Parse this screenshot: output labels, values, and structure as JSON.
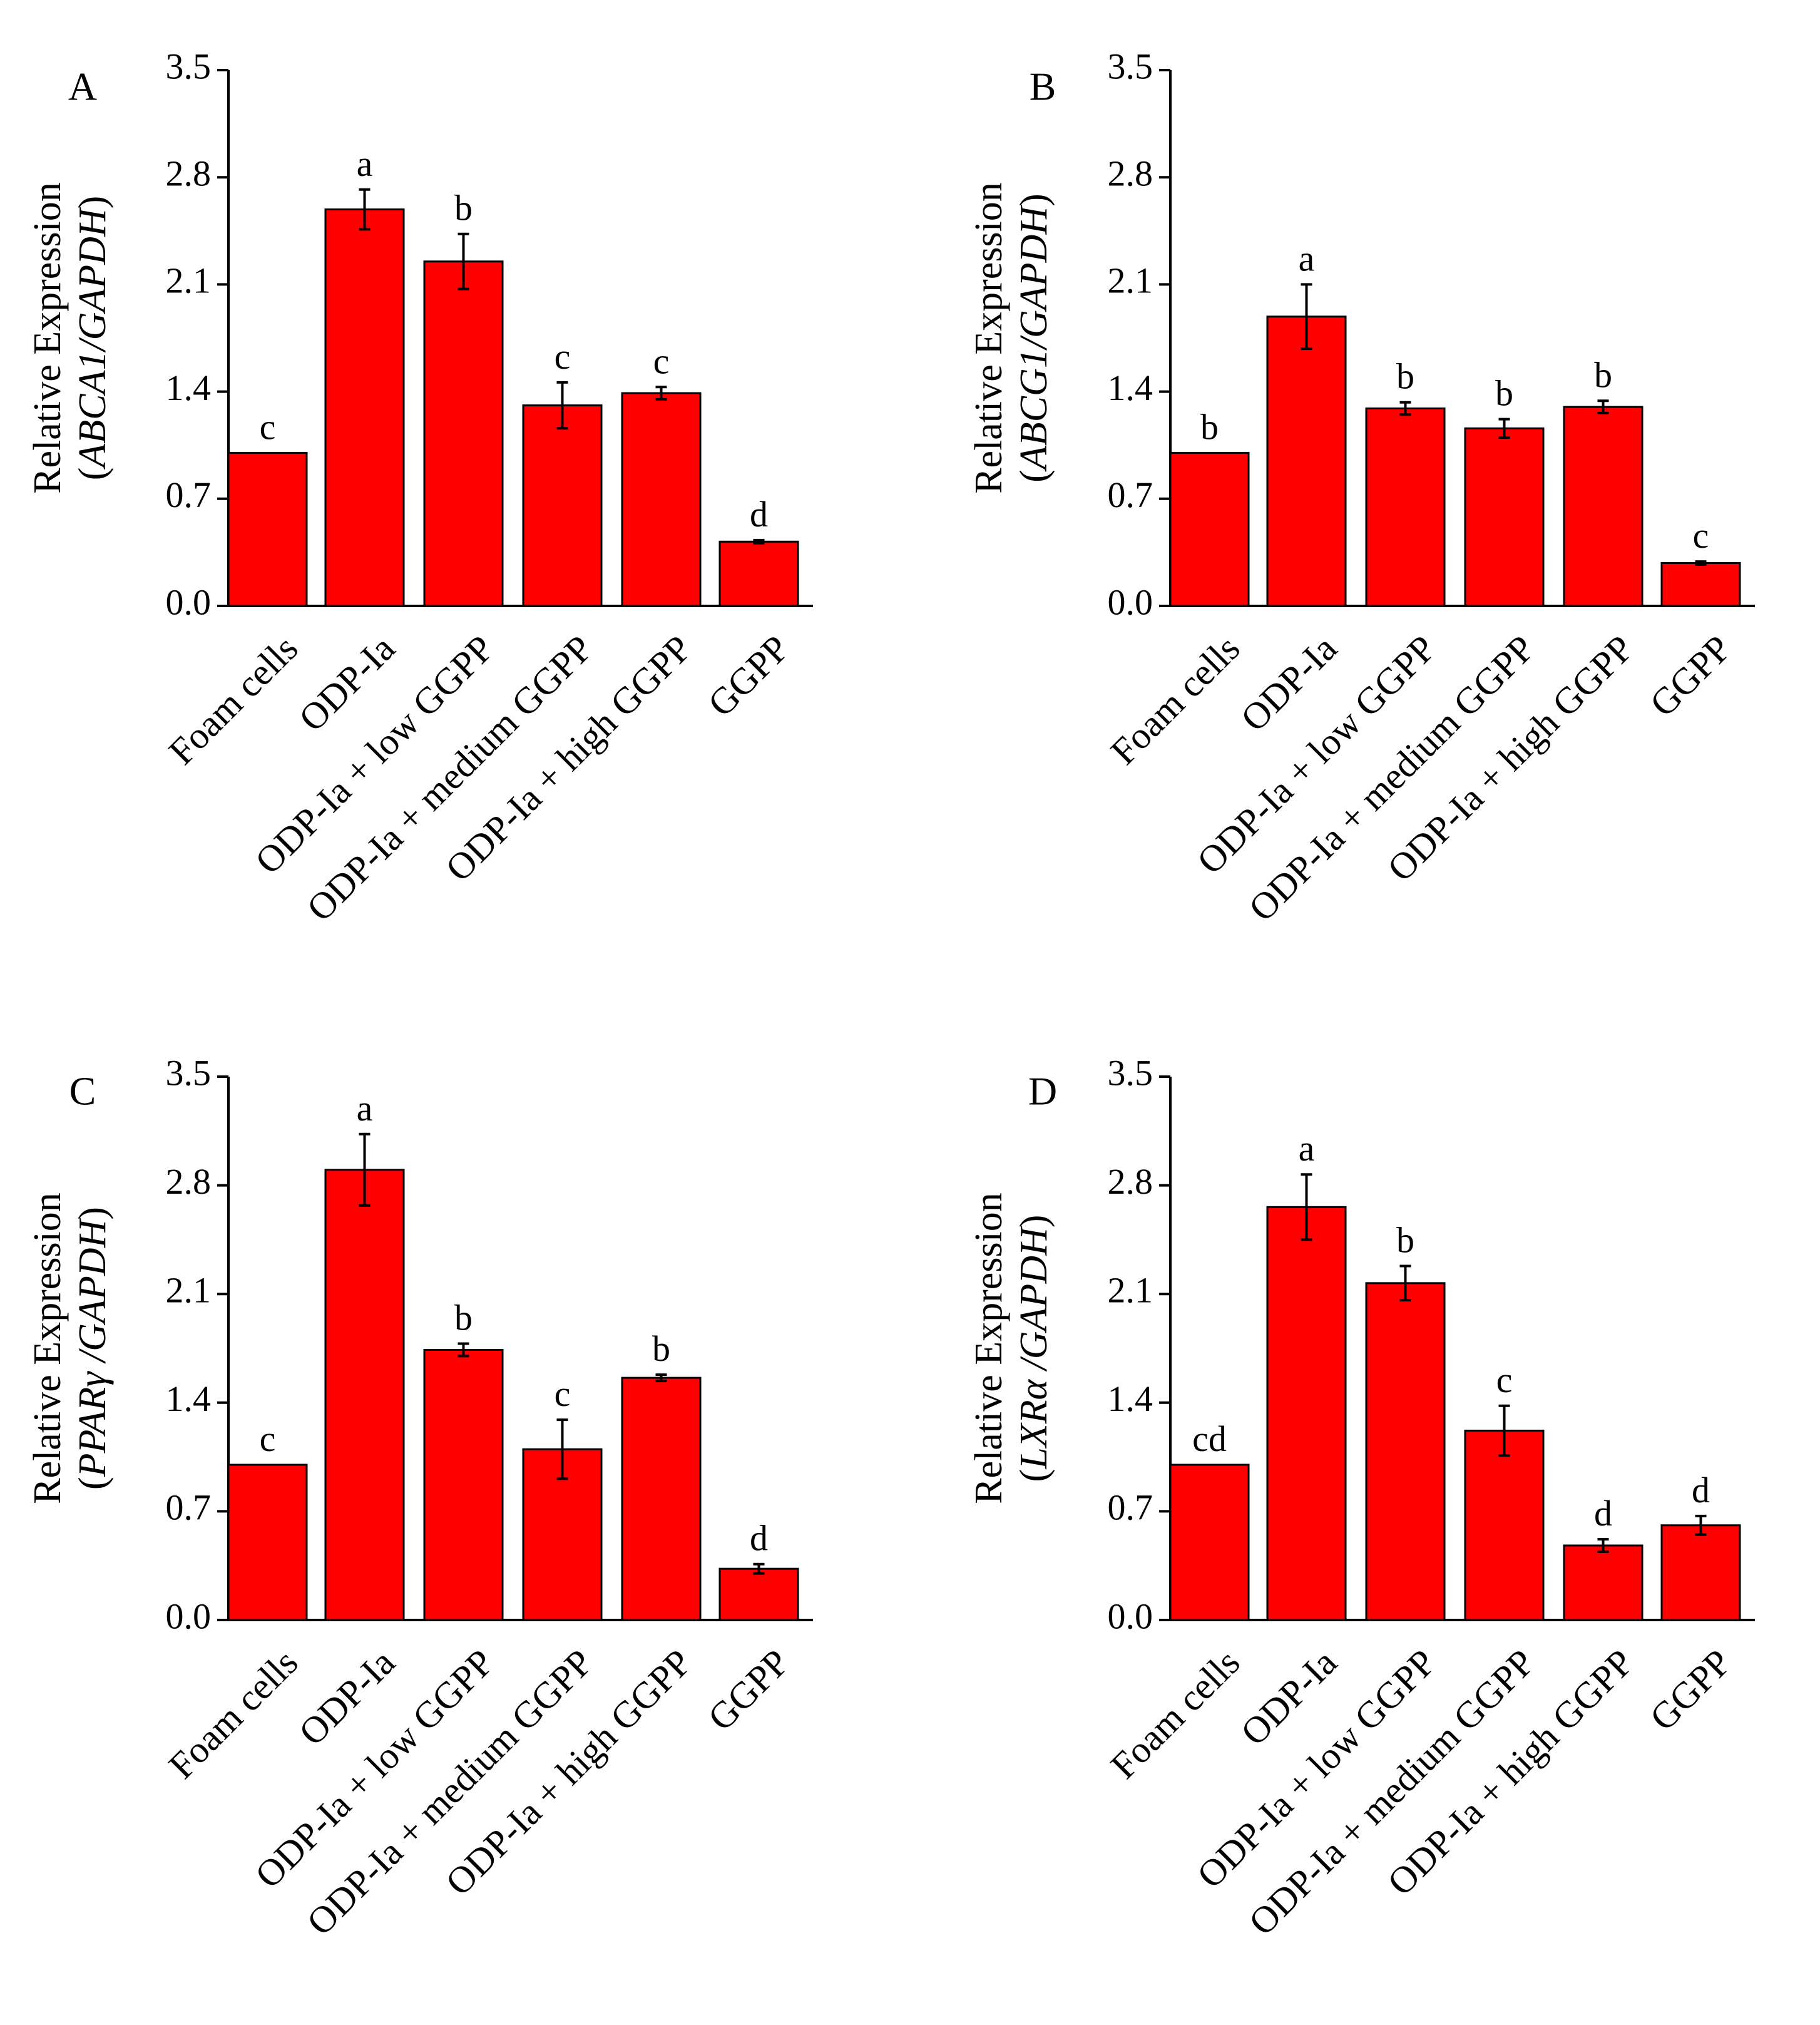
{
  "chart_data": [
    {
      "type": "bar",
      "panel": "A",
      "ylabel": "Relative Expression",
      "ylabel_gene": "ABCA1/GAPDH",
      "ylabel_open": "(",
      "ylabel_close": ")",
      "ylim": [
        0,
        3.5
      ],
      "yticks": [
        "0.0",
        "0.7",
        "1.4",
        "2.1",
        "2.8",
        "3.5"
      ],
      "categories": [
        "Foam cells",
        "ODP-Ia",
        "ODP-Ia + low GGPP",
        "ODP-Ia + medium GGPP",
        "ODP-Ia + high GGPP",
        "GGPP"
      ],
      "values": [
        1.0,
        2.59,
        2.25,
        1.31,
        1.39,
        0.42
      ],
      "errors": [
        0.0,
        0.13,
        0.18,
        0.15,
        0.04,
        0.01
      ],
      "letters": [
        "c",
        "a",
        "b",
        "c",
        "c",
        "d"
      ]
    },
    {
      "type": "bar",
      "panel": "B",
      "ylabel": "Relative Expression",
      "ylabel_gene": "ABCG1/GAPDH",
      "ylabel_open": "(",
      "ylabel_close": ")",
      "ylim": [
        0,
        3.5
      ],
      "yticks": [
        "0.0",
        "0.7",
        "1.4",
        "2.1",
        "2.8",
        "3.5"
      ],
      "categories": [
        "Foam cells",
        "ODP-Ia",
        "ODP-Ia + low GGPP",
        "ODP-Ia + medium GGPP",
        "ODP-Ia + high GGPP",
        "GGPP"
      ],
      "values": [
        1.0,
        1.89,
        1.29,
        1.16,
        1.3,
        0.28
      ],
      "errors": [
        0.0,
        0.21,
        0.04,
        0.06,
        0.04,
        0.01
      ],
      "letters": [
        "b",
        "a",
        "b",
        "b",
        "b",
        "c"
      ]
    },
    {
      "type": "bar",
      "panel": "C",
      "ylabel": "Relative Expression",
      "ylabel_gene": "PPARγ /GAPDH",
      "ylabel_open": "(",
      "ylabel_close": ")",
      "ylim": [
        0,
        3.5
      ],
      "yticks": [
        "0.0",
        "0.7",
        "1.4",
        "2.1",
        "2.8",
        "3.5"
      ],
      "categories": [
        "Foam cells",
        "ODP-Ia",
        "ODP-Ia + low GGPP",
        "ODP-Ia + medium GGPP",
        "ODP-Ia + high GGPP",
        "GGPP"
      ],
      "values": [
        1.0,
        2.9,
        1.74,
        1.1,
        1.56,
        0.33
      ],
      "errors": [
        0.0,
        0.23,
        0.04,
        0.19,
        0.02,
        0.03
      ],
      "letters": [
        "c",
        "a",
        "b",
        "c",
        "b",
        "d"
      ]
    },
    {
      "type": "bar",
      "panel": "D",
      "ylabel": "Relative Expression",
      "ylabel_gene": "LXRα /GAPDH",
      "ylabel_open": "(",
      "ylabel_close": ")",
      "ylim": [
        0,
        3.5
      ],
      "yticks": [
        "0.0",
        "0.7",
        "1.4",
        "2.1",
        "2.8",
        "3.5"
      ],
      "categories": [
        "Foam cells",
        "ODP-Ia",
        "ODP-Ia + low GGPP",
        "ODP-Ia + medium GGPP",
        "ODP-Ia + high GGPP",
        "GGPP"
      ],
      "values": [
        1.0,
        2.66,
        2.17,
        1.22,
        0.48,
        0.61
      ],
      "errors": [
        0.0,
        0.21,
        0.11,
        0.16,
        0.04,
        0.06
      ],
      "letters": [
        "cd",
        "a",
        "b",
        "c",
        "d",
        "d"
      ]
    }
  ],
  "colors": {
    "bar_fill": "#ff0000",
    "bar_stroke": "#000000",
    "axis": "#000000",
    "text": "#000000",
    "background": "#ffffff"
  }
}
